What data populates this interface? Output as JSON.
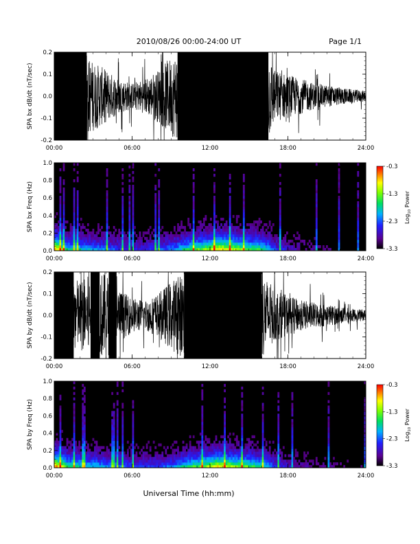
{
  "header": {
    "title": "2010/08/26  00:00-24:00 UT",
    "page": "Page 1/1"
  },
  "xaxis": {
    "label": "Universal Time (hh:mm)",
    "range": [
      0,
      24
    ],
    "ticks": [
      0,
      6,
      12,
      18,
      24
    ],
    "tick_labels": [
      "00:00",
      "06:00",
      "12:00",
      "18:00",
      "24:00"
    ]
  },
  "colorbar": {
    "label": "Log",
    "label_sub": "10",
    "label_rest": " Power",
    "range": [
      -3.3,
      -0.3
    ],
    "tick_values": [
      -0.3,
      -1.3,
      -2.3,
      -3.3
    ],
    "tick_labels": [
      "-0.3",
      "-1.3",
      "-2.3",
      "-3.3"
    ]
  },
  "chart_data": [
    {
      "type": "line",
      "title": "",
      "ylabel": "SPA bx dB/dt (nT/sec)",
      "xlim": [
        0,
        24
      ],
      "ylim": [
        -0.2,
        0.2
      ],
      "y_ticks": [
        -0.2,
        -0.1,
        0.0,
        0.1,
        0.2
      ],
      "y_tick_labels": [
        "-0.2",
        "-0.1",
        "0.0",
        "0.1",
        "0.2"
      ],
      "saturated_intervals_hours": [
        [
          0.0,
          2.5
        ],
        [
          9.5,
          16.5
        ]
      ],
      "amplitude_envelope": {
        "x": [
          0,
          1,
          2,
          3,
          4,
          5,
          6,
          7,
          8,
          9,
          9.5,
          16.5,
          17,
          18,
          19,
          20,
          21,
          22,
          23,
          24
        ],
        "y": [
          0.2,
          0.2,
          0.2,
          0.16,
          0.12,
          0.08,
          0.06,
          0.08,
          0.12,
          0.18,
          0.2,
          0.2,
          0.12,
          0.1,
          0.08,
          0.06,
          0.05,
          0.04,
          0.03,
          0.025
        ]
      }
    },
    {
      "type": "heatmap",
      "title": "",
      "ylabel": "SPA bx Freq (Hz)",
      "xlim": [
        0,
        24
      ],
      "ylim": [
        0.0,
        1.0
      ],
      "y_ticks": [
        0.0,
        0.2,
        0.4,
        0.6,
        0.8,
        1.0
      ],
      "y_tick_labels": [
        "0.0",
        "0.2",
        "0.4",
        "0.6",
        "0.8",
        "1.0"
      ],
      "z_range": [
        -3.3,
        -0.3
      ],
      "activity_profile": {
        "x": [
          0,
          0.5,
          1,
          2,
          3,
          4,
          5,
          6,
          7,
          8,
          9,
          10,
          11,
          12,
          12.5,
          13,
          13.5,
          14,
          15,
          16,
          16.5,
          17,
          18,
          19,
          20,
          21,
          22,
          23,
          24
        ],
        "y": [
          0.9,
          0.7,
          0.5,
          0.45,
          0.4,
          0.35,
          0.3,
          0.25,
          0.25,
          0.3,
          0.35,
          0.5,
          0.6,
          0.7,
          0.75,
          0.8,
          0.75,
          0.7,
          0.6,
          0.55,
          0.45,
          0.3,
          0.2,
          0.15,
          0.1,
          0.08,
          0.06,
          0.05,
          0.04
        ]
      }
    },
    {
      "type": "line",
      "title": "",
      "ylabel": "SPA by dB/dt (nT/sec)",
      "xlim": [
        0,
        24
      ],
      "ylim": [
        -0.2,
        0.2
      ],
      "y_ticks": [
        -0.2,
        -0.1,
        0.0,
        0.1,
        0.2
      ],
      "y_tick_labels": [
        "-0.2",
        "-0.1",
        "0.0",
        "0.1",
        "0.2"
      ],
      "saturated_intervals_hours": [
        [
          0.0,
          1.5
        ],
        [
          2.8,
          3.5
        ],
        [
          4.2,
          4.8
        ],
        [
          10.0,
          16.0
        ]
      ],
      "amplitude_envelope": {
        "x": [
          0,
          1,
          2,
          3,
          4,
          5,
          6,
          7,
          8,
          9,
          10,
          16,
          17,
          18,
          19,
          20,
          21,
          22,
          23,
          24
        ],
        "y": [
          0.2,
          0.2,
          0.16,
          0.2,
          0.2,
          0.12,
          0.08,
          0.07,
          0.1,
          0.16,
          0.2,
          0.2,
          0.12,
          0.09,
          0.07,
          0.06,
          0.05,
          0.04,
          0.03,
          0.025
        ]
      }
    },
    {
      "type": "heatmap",
      "title": "",
      "ylabel": "SPA by Freq (Hz)",
      "xlim": [
        0,
        24
      ],
      "ylim": [
        0.0,
        1.0
      ],
      "y_ticks": [
        0.0,
        0.2,
        0.4,
        0.6,
        0.8,
        1.0
      ],
      "y_tick_labels": [
        "0.0",
        "0.2",
        "0.4",
        "0.6",
        "0.8",
        "1.0"
      ],
      "z_range": [
        -3.3,
        -0.3
      ],
      "activity_profile": {
        "x": [
          0,
          0.5,
          1,
          2,
          3,
          4,
          5,
          6,
          7,
          8,
          9,
          10,
          11,
          12,
          12.5,
          13,
          13.5,
          14,
          15,
          16,
          16.5,
          17,
          18,
          19,
          20,
          21,
          22,
          23,
          24
        ],
        "y": [
          0.9,
          0.75,
          0.55,
          0.5,
          0.45,
          0.4,
          0.35,
          0.3,
          0.28,
          0.3,
          0.35,
          0.5,
          0.6,
          0.7,
          0.8,
          0.75,
          0.7,
          0.65,
          0.6,
          0.5,
          0.4,
          0.3,
          0.2,
          0.15,
          0.12,
          0.1,
          0.08,
          0.06,
          0.05
        ]
      }
    }
  ]
}
